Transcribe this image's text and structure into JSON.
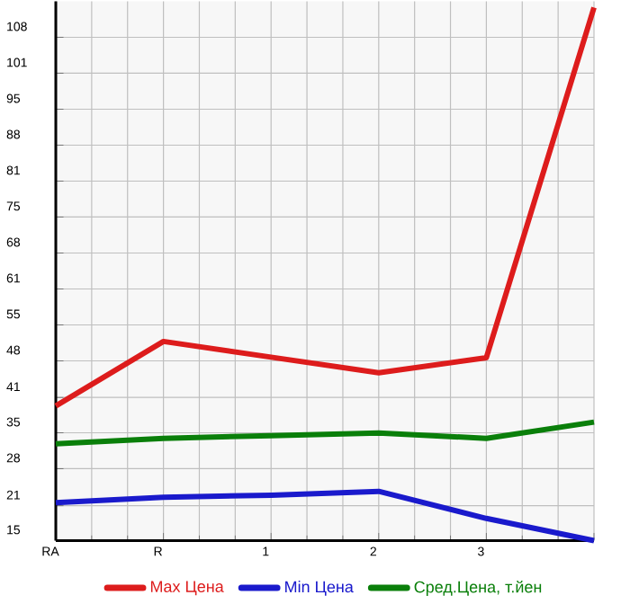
{
  "chart_data": {
    "type": "line",
    "categories": [
      "RA",
      "R",
      "1",
      "2",
      "3",
      null
    ],
    "series": [
      {
        "name": "Max Цена",
        "color": "#dd1c1c",
        "values": [
          39.9,
          51.8,
          48.9,
          46.0,
          48.8,
          113.5
        ]
      },
      {
        "name": "Min Цена",
        "color": "#1a1acc",
        "values": [
          22.0,
          23.0,
          23.4,
          24.1,
          19.1,
          15.0
        ]
      },
      {
        "name": "Сред.Цена, т.йен",
        "color": "#0a7f0a",
        "values": [
          32.9,
          33.9,
          34.4,
          34.9,
          33.9,
          36.9
        ]
      }
    ],
    "ylim": [
      15,
      114.64
    ],
    "yticks": [
      15,
      {
        "value": 21.45,
        "label": "21"
      },
      {
        "value": 28.29,
        "label": "28"
      },
      {
        "value": 34.93,
        "label": "35"
      },
      {
        "value": 41.45,
        "label": "41"
      },
      {
        "value": 48.21,
        "label": "48"
      },
      {
        "value": 54.86,
        "label": "55"
      },
      {
        "value": 61.5,
        "label": "61"
      },
      {
        "value": 68.14,
        "label": "68"
      },
      {
        "value": 74.79,
        "label": "75"
      },
      {
        "value": 81.43,
        "label": "81"
      },
      {
        "value": 88.07,
        "label": "88"
      },
      {
        "value": 94.71,
        "label": "95"
      },
      {
        "value": 101.36,
        "label": "101"
      },
      108
    ],
    "grid": true,
    "legend": "bottom",
    "marker": "none",
    "line_style": "solid"
  }
}
